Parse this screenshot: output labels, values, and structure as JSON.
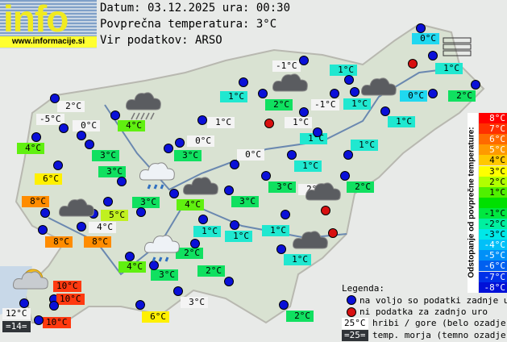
{
  "logo": {
    "text": "info",
    "url": "www.informacije.si"
  },
  "header": {
    "date": "Datum: 03.12.2025 ura: 00:30",
    "avg": "Povprečna temperatura: 3°C",
    "source": "Vir podatkov: ARSO"
  },
  "colors": {
    "white": "#f4f4f4",
    "cyan": "#20e8d0",
    "lightcyan": "#20d8f0",
    "green": "#10e060",
    "lime": "#60f010",
    "yellowgreen": "#c0f020",
    "yellow": "#fff000",
    "orange": "#ff8c00",
    "red": "#ff3a10",
    "dark": "#303438",
    "station": "#0a10d8",
    "missing": "#d81010"
  },
  "stations": [
    {
      "t": "0°C",
      "c": "lightcyan"
    },
    {
      "t": "-1°C",
      "c": "white"
    },
    {
      "t": "1°C",
      "c": "cyan"
    },
    {
      "t": "1°C",
      "c": "cyan"
    },
    {
      "t": "1°C",
      "c": "cyan"
    },
    {
      "t": "2°C",
      "c": "green"
    },
    {
      "t": "-1°C",
      "c": "white"
    },
    {
      "t": "1°C",
      "c": "cyan"
    },
    {
      "t": "0°C",
      "c": "lightcyan"
    },
    {
      "t": "2°C",
      "c": "green"
    },
    {
      "t": "1°C",
      "c": "white"
    },
    {
      "t": "1°C",
      "c": "white"
    },
    {
      "t": "1°C",
      "c": "cyan"
    },
    {
      "t": "1°C",
      "c": "cyan"
    },
    {
      "t": "1°C",
      "c": "cyan"
    },
    {
      "t": "0°C",
      "c": "white"
    },
    {
      "t": "0°C",
      "c": "white"
    },
    {
      "t": "1°C",
      "c": "cyan"
    },
    {
      "t": "3°C",
      "c": "green"
    },
    {
      "t": "2°C",
      "c": "white"
    },
    {
      "t": "2°C",
      "c": "green"
    },
    {
      "t": "2°C",
      "c": "white"
    },
    {
      "t": "-5°C",
      "c": "white"
    },
    {
      "t": "0°C",
      "c": "white"
    },
    {
      "t": "4°C",
      "c": "lime"
    },
    {
      "t": "4°C",
      "c": "lime"
    },
    {
      "t": "3°C",
      "c": "green"
    },
    {
      "t": "3°C",
      "c": "green"
    },
    {
      "t": "6°C",
      "c": "yellow"
    },
    {
      "t": "3°C",
      "c": "green"
    },
    {
      "t": "8°C",
      "c": "orange"
    },
    {
      "t": "5°C",
      "c": "yellowgreen"
    },
    {
      "t": "3°C",
      "c": "green"
    },
    {
      "t": "4°C",
      "c": "lime"
    },
    {
      "t": "4°C",
      "c": "white"
    },
    {
      "t": "8°C",
      "c": "orange"
    },
    {
      "t": "8°C",
      "c": "orange"
    },
    {
      "t": "3°C",
      "c": "green"
    },
    {
      "t": "1°C",
      "c": "cyan"
    },
    {
      "t": "1°C",
      "c": "cyan"
    },
    {
      "t": "2°C",
      "c": "green"
    },
    {
      "t": "1°C",
      "c": "cyan"
    },
    {
      "t": "1°C",
      "c": "cyan"
    },
    {
      "t": "4°C",
      "c": "lime"
    },
    {
      "t": "3°C",
      "c": "green"
    },
    {
      "t": "2°C",
      "c": "green"
    },
    {
      "t": "10°C",
      "c": "red"
    },
    {
      "t": "10°C",
      "c": "red"
    },
    {
      "t": "12°C",
      "c": "white"
    },
    {
      "t": "=14=",
      "c": "dark"
    },
    {
      "t": "10°C",
      "c": "red"
    },
    {
      "t": "3°C",
      "c": "white"
    },
    {
      "t": "6°C",
      "c": "yellow"
    },
    {
      "t": "2°C",
      "c": "green"
    }
  ],
  "weather_icons": [
    "cloud-dark",
    "cloud-dark",
    "rain-cloud-dark",
    "rain-cloud-light",
    "cloud-dark",
    "cloud-dark",
    "cloud-dark",
    "cloud-dark",
    "rain-cloud-light",
    "sun-cloud",
    "fog"
  ],
  "scale": {
    "title": "Odstopanje od povprečne temperature:",
    "steps": [
      {
        "t": "8°C",
        "c": "#ff0000"
      },
      {
        "t": "7°C",
        "c": "#ff3000"
      },
      {
        "t": "6°C",
        "c": "#ff6a00"
      },
      {
        "t": "5°C",
        "c": "#ff9a00"
      },
      {
        "t": "4°C",
        "c": "#ffc800"
      },
      {
        "t": "3°C",
        "c": "#ffff00"
      },
      {
        "t": "2°C",
        "c": "#b0ff00"
      },
      {
        "t": "1°C",
        "c": "#50f000"
      },
      {
        "t": "",
        "c": "#00e000"
      },
      {
        "t": "-1°C",
        "c": "#00e840"
      },
      {
        "t": "-2°C",
        "c": "#00f0a0"
      },
      {
        "t": "-3°C",
        "c": "#00e8e8"
      },
      {
        "t": "-4°C",
        "c": "#00c0f8"
      },
      {
        "t": "-5°C",
        "c": "#0090f8"
      },
      {
        "t": "-6°C",
        "c": "#0060f0"
      },
      {
        "t": "-7°C",
        "c": "#0030e8"
      },
      {
        "t": "-8°C",
        "c": "#0010d8"
      }
    ]
  },
  "legend": {
    "title": "Legenda:",
    "available": "na voljo so podatki zadnje ure",
    "missing": "ni podatka za zadnjo uro",
    "hills_sample": "25°C",
    "hills": "hribi / gore (belo ozadje)",
    "sea_sample": "=25=",
    "sea": "temp. morja (temno ozadje)"
  }
}
